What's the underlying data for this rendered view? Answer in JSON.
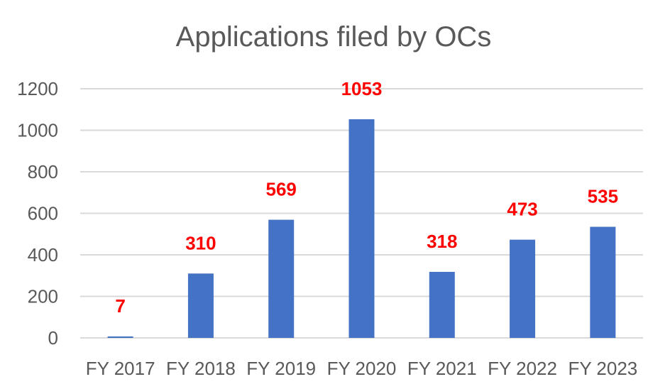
{
  "chart_data": {
    "type": "bar",
    "title": "Applications filed by OCs",
    "xlabel": "",
    "ylabel": "",
    "categories": [
      "FY 2017",
      "FY 2018",
      "FY 2019",
      "FY 2020",
      "FY 2021",
      "FY 2022",
      "FY 2023"
    ],
    "values": [
      7,
      310,
      569,
      1053,
      318,
      473,
      535
    ],
    "ylim": [
      0,
      1200
    ],
    "yticks": [
      0,
      200,
      400,
      600,
      800,
      1000,
      1200
    ],
    "ytick_labels": [
      "0",
      "200",
      "400",
      "600",
      "800",
      "1000",
      "1200"
    ],
    "data_labels": [
      "7",
      "310",
      "569",
      "1053",
      "318",
      "473",
      "535"
    ],
    "grid": true,
    "legend": "none",
    "bar_color": "#4472c4",
    "label_color": "#ff0000"
  }
}
